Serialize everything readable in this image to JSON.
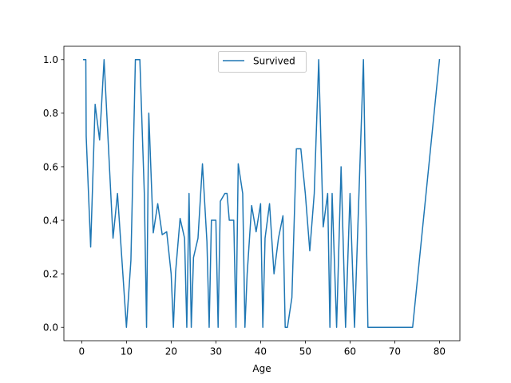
{
  "chart_data": {
    "type": "line",
    "xlabel": "Age",
    "ylabel": "",
    "xlim": [
      -3.99,
      84.57
    ],
    "ylim": [
      -0.05,
      1.05
    ],
    "xticks": [
      0,
      10,
      20,
      30,
      40,
      50,
      60,
      70,
      80
    ],
    "yticks": [
      0.0,
      0.2,
      0.4,
      0.6,
      0.8,
      1.0
    ],
    "ytick_labels": [
      "0.0",
      "0.2",
      "0.4",
      "0.6",
      "0.8",
      "1.0"
    ],
    "legend_position": "top-center",
    "grid": false,
    "series": [
      {
        "name": "Survived",
        "color": "#1f77b4",
        "x": [
          0.42,
          0.67,
          0.75,
          0.83,
          0.92,
          1,
          2,
          3,
          4,
          5,
          6,
          7,
          8,
          9,
          10,
          11,
          12,
          13,
          14,
          14.5,
          15,
          16,
          17,
          18,
          19,
          20,
          20.5,
          21,
          22,
          23,
          23.5,
          24,
          24.5,
          25,
          26,
          27,
          28,
          28.5,
          29,
          30,
          30.5,
          31,
          32,
          32.5,
          33,
          34,
          34.5,
          35,
          36,
          36.5,
          37,
          38,
          39,
          40,
          40.5,
          41,
          42,
          43,
          44,
          45,
          45.5,
          46,
          47,
          48,
          49,
          50,
          51,
          52,
          53,
          54,
          55,
          55.5,
          56,
          57,
          58,
          59,
          60,
          61,
          62,
          63,
          64,
          65,
          66,
          70,
          70.5,
          71,
          74,
          80
        ],
        "y": [
          1.0,
          1.0,
          1.0,
          1.0,
          1.0,
          0.714,
          0.3,
          0.833,
          0.7,
          1.0,
          0.667,
          0.333,
          0.5,
          0.25,
          0.0,
          0.25,
          1.0,
          1.0,
          0.5,
          0.0,
          0.8,
          0.353,
          0.462,
          0.346,
          0.357,
          0.2,
          0.0,
          0.208,
          0.407,
          0.333,
          0.0,
          0.5,
          0.0,
          0.261,
          0.333,
          0.611,
          0.32,
          0.0,
          0.4,
          0.4,
          0.0,
          0.471,
          0.5,
          0.5,
          0.4,
          0.4,
          0.0,
          0.611,
          0.5,
          0.0,
          0.2,
          0.455,
          0.357,
          0.462,
          0.0,
          0.333,
          0.462,
          0.2,
          0.333,
          0.417,
          0.0,
          0.0,
          0.111,
          0.667,
          0.667,
          0.5,
          0.286,
          0.5,
          1.0,
          0.375,
          0.5,
          0.0,
          0.5,
          0.0,
          0.6,
          0.0,
          0.5,
          0.0,
          0.5,
          1.0,
          0.0,
          0.0,
          0.0,
          0.0,
          0.0,
          0.0,
          0.0,
          1.0
        ]
      }
    ]
  }
}
